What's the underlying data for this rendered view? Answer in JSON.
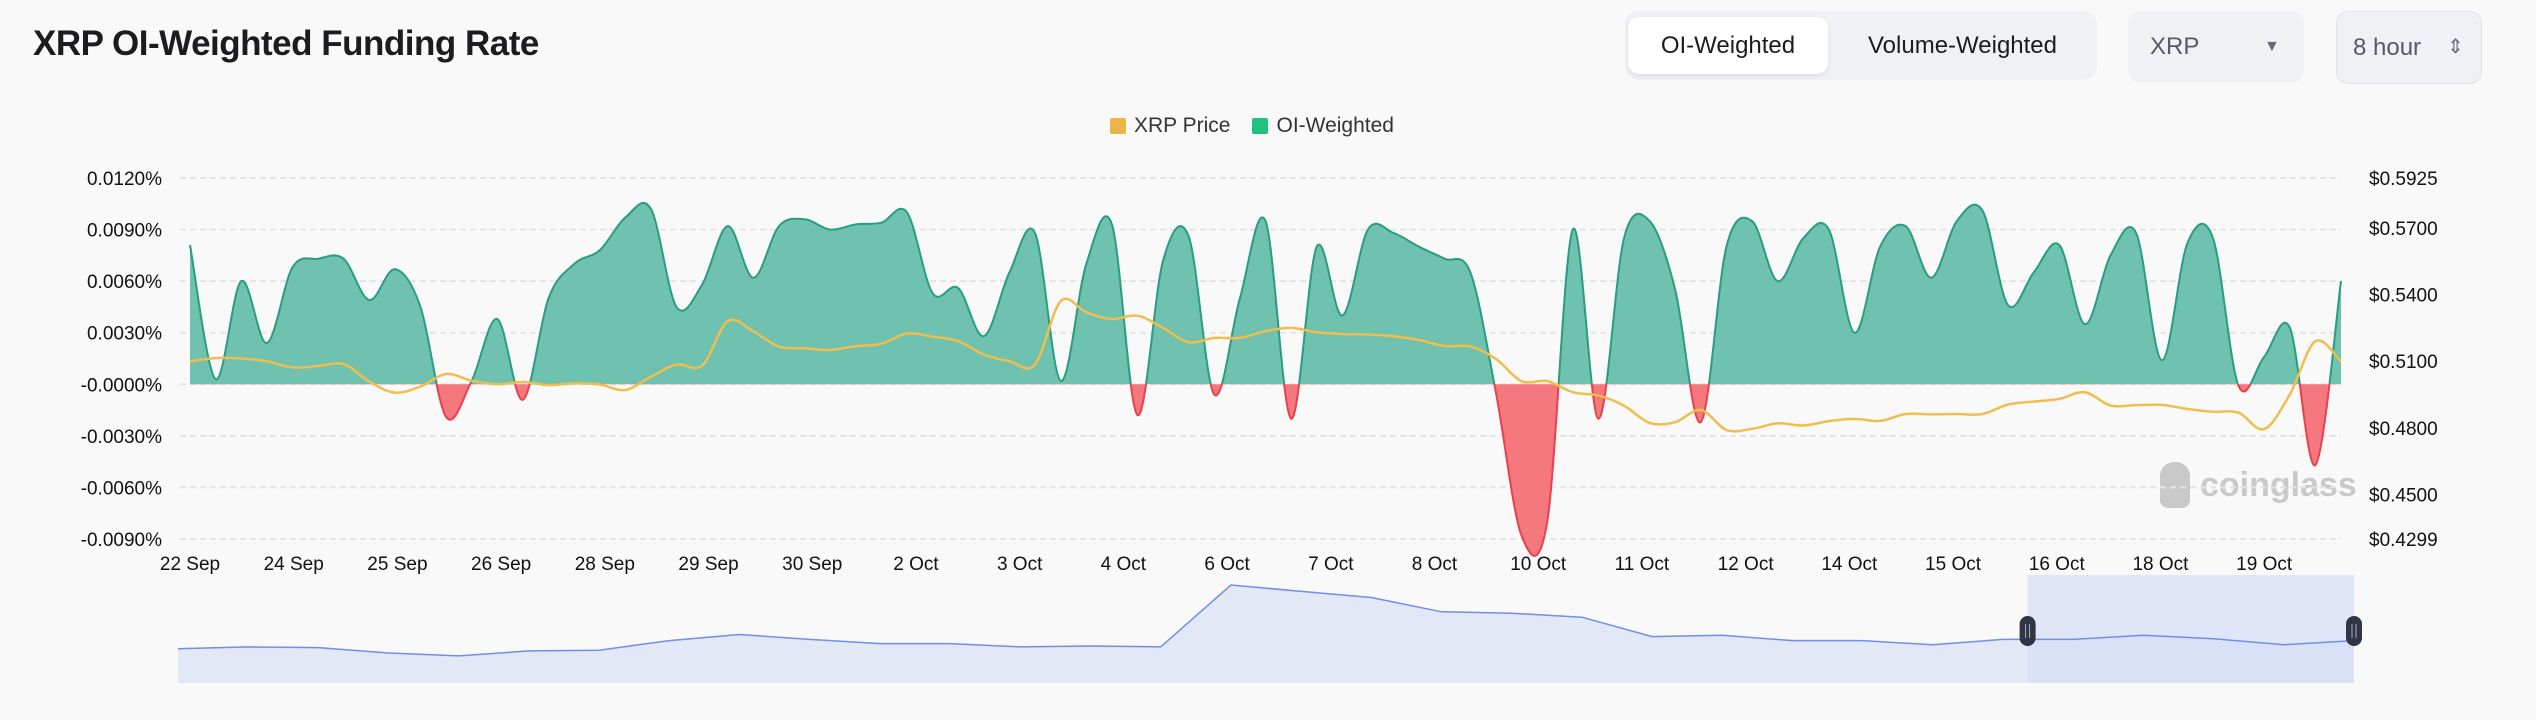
{
  "header": {
    "title": "XRP OI-Weighted Funding Rate",
    "segmented": {
      "options": [
        "OI-Weighted",
        "Volume-Weighted"
      ],
      "selected": "OI-Weighted"
    },
    "coin_select": {
      "value": "XRP",
      "icon": "caret-down-icon"
    },
    "interval_select": {
      "value": "8 hour",
      "icon": "up-down-chevron-icon"
    }
  },
  "watermark": "coinglass",
  "colors": {
    "positive": "#6fc1b0",
    "positive_line": "#2a9d80",
    "negative": "#f5787e",
    "negative_line": "#e8414c",
    "price": "#efbe4f",
    "navigator": "#6f8fe8",
    "navigator_fill": "#e3e8f6",
    "selection": "#d5def8"
  },
  "chart_data": {
    "type": "area",
    "title": "",
    "legend": {
      "placement": "top-center",
      "entries": [
        {
          "name": "XRP Price",
          "color": "#eab64a"
        },
        {
          "name": "OI-Weighted",
          "color": "#1fc281"
        }
      ]
    },
    "x_ticks": [
      "22 Sep",
      "24 Sep",
      "25 Sep",
      "26 Sep",
      "28 Sep",
      "29 Sep",
      "30 Sep",
      "2 Oct",
      "3 Oct",
      "4 Oct",
      "6 Oct",
      "7 Oct",
      "8 Oct",
      "10 Oct",
      "11 Oct",
      "12 Oct",
      "14 Oct",
      "15 Oct",
      "16 Oct",
      "18 Oct",
      "19 Oct"
    ],
    "x_start": "22 Sep",
    "x_interval": "8 hour",
    "y_left": {
      "ticks": [
        "0.0120%",
        "0.0090%",
        "0.0060%",
        "0.0030%",
        "-0.0000%",
        "-0.0030%",
        "-0.0060%",
        "-0.0090%"
      ],
      "range": [
        -0.009,
        0.012
      ],
      "unit": "%"
    },
    "y_right": {
      "ticks": [
        "$0.5925",
        "$0.5700",
        "$0.5400",
        "$0.5100",
        "$0.4800",
        "$0.4500",
        "$0.4299"
      ],
      "range": [
        0.4299,
        0.5925
      ]
    },
    "grid": true,
    "series": [
      {
        "name": "OI-Weighted",
        "axis": "left",
        "values": [
          0.0081,
          0.0003,
          0.006,
          0.0024,
          0.0068,
          0.0073,
          0.0073,
          0.0049,
          0.0067,
          0.0045,
          -0.0019,
          0.0002,
          0.0038,
          -0.0009,
          0.005,
          0.007,
          0.0078,
          0.0097,
          0.0102,
          0.0045,
          0.0058,
          0.0092,
          0.0062,
          0.0092,
          0.0096,
          0.009,
          0.0093,
          0.0094,
          0.01,
          0.0053,
          0.0056,
          0.0028,
          0.0065,
          0.0088,
          0.0002,
          0.007,
          0.0093,
          -0.0018,
          0.0072,
          0.0086,
          -0.0006,
          0.005,
          0.0095,
          -0.002,
          0.008,
          0.004,
          0.009,
          0.0088,
          0.008,
          0.0073,
          0.0065,
          -0.0005,
          -0.0088,
          -0.008,
          0.009,
          -0.002,
          0.0085,
          0.0095,
          0.0055,
          -0.0022,
          0.008,
          0.0095,
          0.006,
          0.0085,
          0.009,
          0.003,
          0.008,
          0.0092,
          0.0062,
          0.0095,
          0.0101,
          0.0046,
          0.0065,
          0.0081,
          0.0035,
          0.0075,
          0.0088,
          0.0014,
          0.0082,
          0.0085,
          -0.0001,
          0.0016,
          0.0033,
          -0.0047,
          0.006
        ]
      },
      {
        "name": "XRP Price",
        "axis": "right",
        "values": [
          0.5099,
          0.5114,
          0.5112,
          0.51,
          0.5072,
          0.5078,
          0.5087,
          0.5008,
          0.4958,
          0.4986,
          0.5042,
          0.5012,
          0.4996,
          0.5006,
          0.4992,
          0.5,
          0.4995,
          0.497,
          0.503,
          0.5085,
          0.508,
          0.528,
          0.5234,
          0.5165,
          0.5158,
          0.515,
          0.5168,
          0.5178,
          0.5225,
          0.521,
          0.519,
          0.513,
          0.51,
          0.5085,
          0.537,
          0.532,
          0.529,
          0.5305,
          0.525,
          0.5185,
          0.5205,
          0.5205,
          0.5235,
          0.525,
          0.523,
          0.5222,
          0.522,
          0.5212,
          0.5195,
          0.5168,
          0.5166,
          0.511,
          0.501,
          0.501,
          0.496,
          0.4945,
          0.49,
          0.4822,
          0.4825,
          0.488,
          0.479,
          0.4795,
          0.482,
          0.481,
          0.483,
          0.484,
          0.4831,
          0.4862,
          0.486,
          0.4862,
          0.4862,
          0.4905,
          0.4918,
          0.493,
          0.496,
          0.49,
          0.4902,
          0.4903,
          0.4885,
          0.4872,
          0.4868,
          0.4794,
          0.495,
          0.519,
          0.5099
        ]
      }
    ]
  },
  "navigator": {
    "levels": [
      0.279,
      0.295,
      0.289,
      0.245,
      0.221,
      0.262,
      0.268,
      0.346,
      0.396,
      0.356,
      0.322,
      0.322,
      0.295,
      0.302,
      0.295,
      0.8,
      0.748,
      0.698,
      0.581,
      0.57,
      0.537,
      0.379,
      0.389,
      0.346,
      0.346,
      0.312,
      0.356,
      0.356,
      0.389,
      0.362,
      0.312,
      0.346
    ],
    "selection": {
      "start_fraction": 0.85,
      "end_fraction": 1.0
    }
  }
}
